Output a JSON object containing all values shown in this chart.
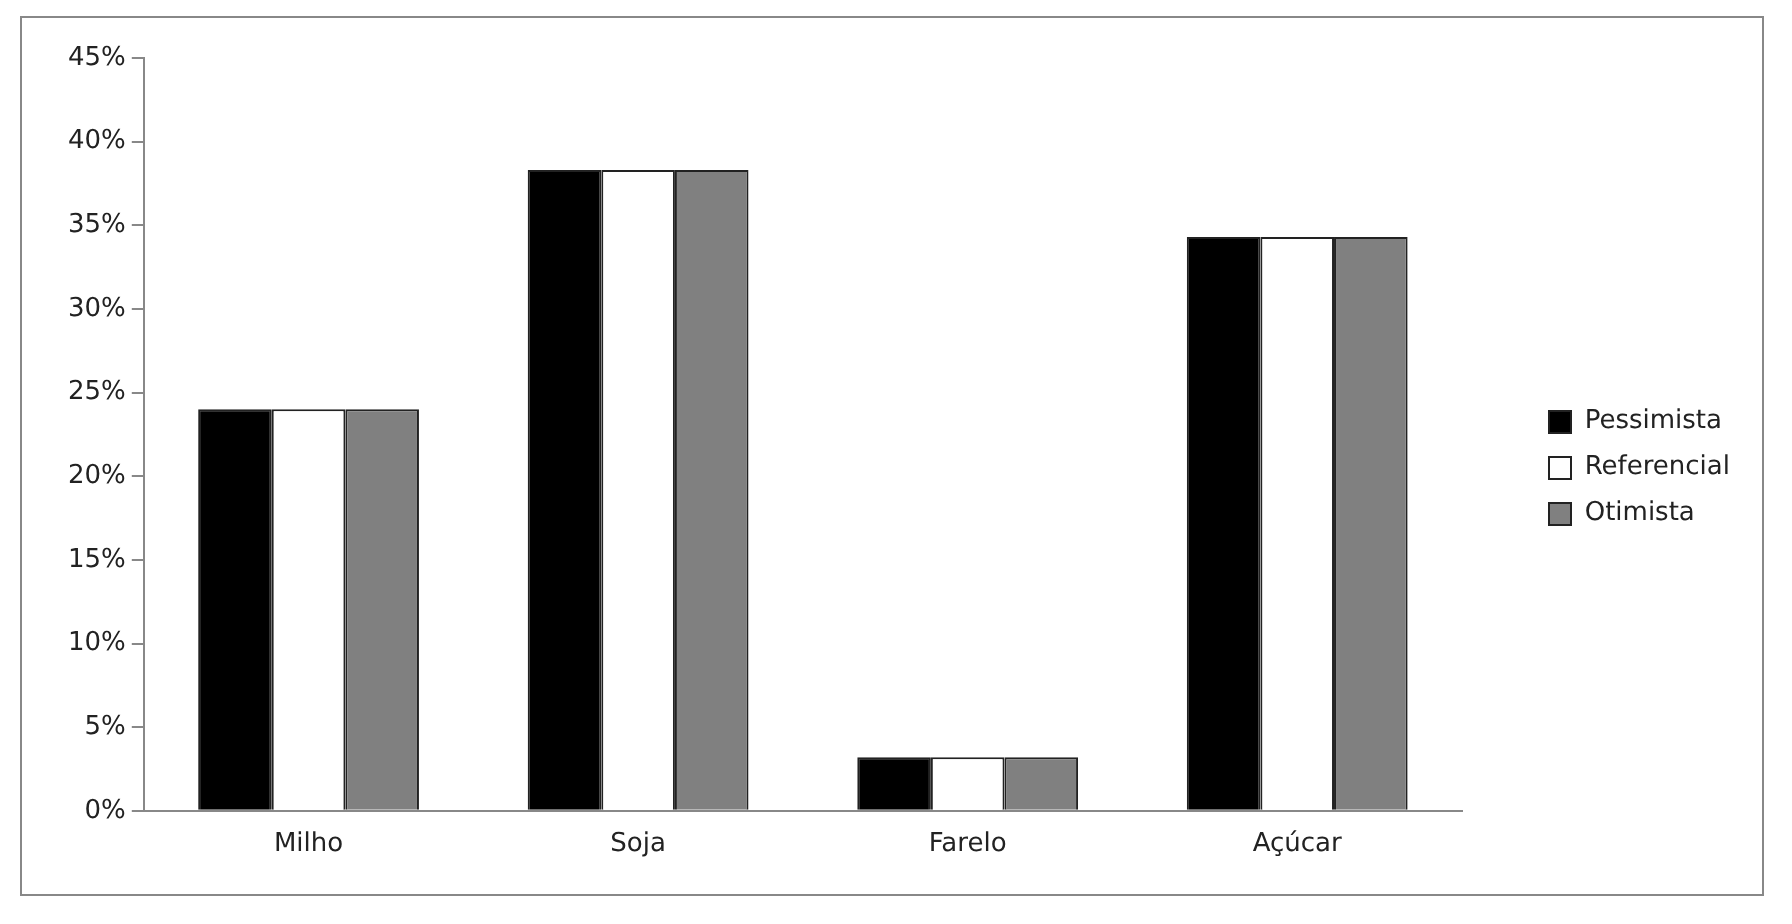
{
  "chart_data": {
    "type": "bar",
    "categories": [
      "Milho",
      "Soja",
      "Farelo",
      "Açúcar"
    ],
    "series": [
      {
        "name": "Pessimista",
        "color": "#000000",
        "values": [
          24.0,
          38.3,
          3.2,
          34.3
        ]
      },
      {
        "name": "Referencial",
        "color": "#ffffff",
        "values": [
          24.0,
          38.3,
          3.2,
          34.3
        ]
      },
      {
        "name": "Otimista",
        "color": "#808080",
        "values": [
          24.0,
          38.3,
          3.2,
          34.3
        ]
      }
    ],
    "ylim": [
      0,
      45
    ],
    "yticks": [
      {
        "value": 0,
        "label": "0%"
      },
      {
        "value": 5,
        "label": "5%"
      },
      {
        "value": 10,
        "label": "10%"
      },
      {
        "value": 15,
        "label": "15%"
      },
      {
        "value": 20,
        "label": "20%"
      },
      {
        "value": 25,
        "label": "25%"
      },
      {
        "value": 30,
        "label": "30%"
      },
      {
        "value": 35,
        "label": "35%"
      },
      {
        "value": 40,
        "label": "40%"
      },
      {
        "value": 45,
        "label": "45%"
      }
    ],
    "grid": false,
    "legend": "right"
  }
}
